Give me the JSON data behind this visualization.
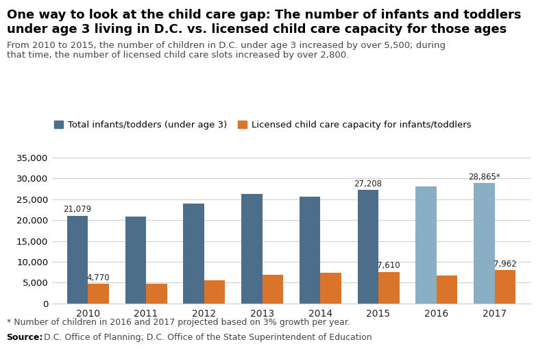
{
  "years": [
    "2010",
    "2011",
    "2012",
    "2013",
    "2014",
    "2015",
    "2016",
    "2017"
  ],
  "infants": [
    21079,
    20897,
    23886,
    26262,
    25679,
    27208,
    28074,
    28865
  ],
  "capacity": [
    4770,
    4681,
    5578,
    6824,
    7333,
    7610,
    6789,
    7962
  ],
  "infant_labels": [
    "21,079",
    null,
    null,
    null,
    null,
    "27,208",
    null,
    "28,865*"
  ],
  "capacity_labels": [
    "4,770",
    null,
    null,
    null,
    null,
    "7,610",
    null,
    "7,962"
  ],
  "bar_color_infants_solid": "#4d6e8b",
  "bar_color_infants_light": "#8aafc5",
  "bar_color_capacity": "#d9742a",
  "projected_years": [
    6,
    7
  ],
  "title_line1": "One way to look at the child care gap: The number of infants and toddlers",
  "title_line2": "under age 3 living in D.C. vs. licensed child care capacity for those ages",
  "subtitle_line1": "From 2010 to 2015, the number of children in D.C. under age 3 increased by over 5,500; during",
  "subtitle_line2": "that time, the number of licensed child care slots increased by over 2,800.",
  "legend_label1": "Total infants/todders (under age 3)",
  "legend_label2": "Licensed child care capacity for infants/toddlers",
  "yticks": [
    0,
    5000,
    10000,
    15000,
    20000,
    25000,
    30000,
    35000
  ],
  "footnote": "* Number of children in 2016 and 2017 projected based on 3% growth per year.",
  "source_bold": "Source:",
  "source_normal": " D.C. Office of Planning; D.C. Office of the State Superintendent of Education",
  "bg_color": "#ffffff",
  "text_color": "#222222",
  "subtitle_color": "#444444",
  "grid_color": "#d0d0d0",
  "spine_color": "#cccccc"
}
